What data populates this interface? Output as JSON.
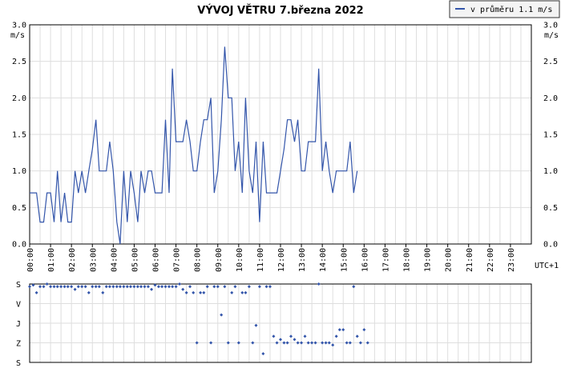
{
  "title": "VÝVOJ VĚTRU  7.března 2022",
  "legend_label": "v průměru 1.1 m/s",
  "timezone_label": "UTC+1",
  "colors": {
    "line": "#3355aa",
    "dot": "#3355aa",
    "grid": "#dedede",
    "legend_border": "#333333"
  },
  "chart_data": [
    {
      "type": "line",
      "ylabel": "m/s",
      "ylim": [
        0,
        3.0
      ],
      "yticks": [
        "0.0",
        "0.5",
        "1.0",
        "1.5",
        "2.0",
        "2.5",
        "3.0"
      ],
      "xticks": [
        "00:00",
        "01:00",
        "02:00",
        "03:00",
        "04:00",
        "05:00",
        "06:00",
        "07:00",
        "08:00",
        "09:00",
        "10:00",
        "11:00",
        "12:00",
        "13:00",
        "14:00",
        "15:00",
        "16:00",
        "17:00",
        "18:00",
        "19:00",
        "20:00",
        "21:00",
        "22:00",
        "23:00"
      ],
      "xlim": [
        0,
        24
      ],
      "grid": true,
      "legend": "top-right",
      "series": [
        {
          "name": "v průměru 1.1 m/s",
          "values": [
            [
              0.0,
              0.7
            ],
            [
              0.17,
              0.7
            ],
            [
              0.33,
              0.7
            ],
            [
              0.5,
              0.3
            ],
            [
              0.67,
              0.3
            ],
            [
              0.83,
              0.7
            ],
            [
              1.0,
              0.7
            ],
            [
              1.17,
              0.3
            ],
            [
              1.33,
              1.0
            ],
            [
              1.5,
              0.3
            ],
            [
              1.67,
              0.7
            ],
            [
              1.83,
              0.3
            ],
            [
              2.0,
              0.3
            ],
            [
              2.17,
              1.0
            ],
            [
              2.33,
              0.7
            ],
            [
              2.5,
              1.0
            ],
            [
              2.67,
              0.7
            ],
            [
              2.83,
              1.0
            ],
            [
              3.0,
              1.3
            ],
            [
              3.17,
              1.7
            ],
            [
              3.33,
              1.0
            ],
            [
              3.5,
              1.0
            ],
            [
              3.67,
              1.0
            ],
            [
              3.83,
              1.4
            ],
            [
              4.0,
              1.0
            ],
            [
              4.17,
              0.3
            ],
            [
              4.33,
              0.0
            ],
            [
              4.5,
              1.0
            ],
            [
              4.67,
              0.3
            ],
            [
              4.83,
              1.0
            ],
            [
              5.0,
              0.7
            ],
            [
              5.17,
              0.3
            ],
            [
              5.33,
              1.0
            ],
            [
              5.5,
              0.7
            ],
            [
              5.67,
              1.0
            ],
            [
              5.83,
              1.0
            ],
            [
              6.0,
              0.7
            ],
            [
              6.17,
              0.7
            ],
            [
              6.33,
              0.7
            ],
            [
              6.5,
              1.7
            ],
            [
              6.67,
              0.7
            ],
            [
              6.83,
              2.4
            ],
            [
              7.0,
              1.4
            ],
            [
              7.17,
              1.4
            ],
            [
              7.33,
              1.4
            ],
            [
              7.5,
              1.7
            ],
            [
              7.67,
              1.4
            ],
            [
              7.83,
              1.0
            ],
            [
              8.0,
              1.0
            ],
            [
              8.17,
              1.4
            ],
            [
              8.33,
              1.7
            ],
            [
              8.5,
              1.7
            ],
            [
              8.67,
              2.0
            ],
            [
              8.83,
              0.7
            ],
            [
              9.0,
              1.0
            ],
            [
              9.17,
              1.7
            ],
            [
              9.33,
              2.7
            ],
            [
              9.5,
              2.0
            ],
            [
              9.67,
              2.0
            ],
            [
              9.83,
              1.0
            ],
            [
              10.0,
              1.4
            ],
            [
              10.17,
              0.7
            ],
            [
              10.33,
              2.0
            ],
            [
              10.5,
              1.0
            ],
            [
              10.67,
              0.7
            ],
            [
              10.83,
              1.4
            ],
            [
              11.0,
              0.3
            ],
            [
              11.17,
              1.4
            ],
            [
              11.33,
              0.7
            ],
            [
              11.5,
              0.7
            ],
            [
              11.67,
              0.7
            ],
            [
              11.83,
              0.7
            ],
            [
              12.0,
              1.0
            ],
            [
              12.17,
              1.3
            ],
            [
              12.33,
              1.7
            ],
            [
              12.5,
              1.7
            ],
            [
              12.67,
              1.4
            ],
            [
              12.83,
              1.7
            ],
            [
              13.0,
              1.0
            ],
            [
              13.17,
              1.0
            ],
            [
              13.33,
              1.4
            ],
            [
              13.5,
              1.4
            ],
            [
              13.67,
              1.4
            ],
            [
              13.83,
              2.4
            ],
            [
              14.0,
              1.0
            ],
            [
              14.17,
              1.4
            ],
            [
              14.33,
              1.0
            ],
            [
              14.5,
              0.7
            ],
            [
              14.67,
              1.0
            ],
            [
              14.83,
              1.0
            ],
            [
              15.0,
              1.0
            ],
            [
              15.17,
              1.0
            ],
            [
              15.33,
              1.4
            ],
            [
              15.5,
              0.7
            ],
            [
              15.67,
              1.0
            ]
          ]
        }
      ]
    },
    {
      "type": "scatter",
      "ylabels": [
        "S",
        "V",
        "J",
        "Z",
        "S"
      ],
      "ylim": [
        0,
        360
      ],
      "series": [
        {
          "values": [
            [
              0.0,
              12
            ],
            [
              0.17,
              5
            ],
            [
              0.33,
              40
            ],
            [
              0.5,
              12
            ],
            [
              0.67,
              12
            ],
            [
              0.83,
              0
            ],
            [
              1.0,
              12
            ],
            [
              1.17,
              12
            ],
            [
              1.33,
              12
            ],
            [
              1.5,
              12
            ],
            [
              1.67,
              12
            ],
            [
              1.83,
              12
            ],
            [
              2.0,
              12
            ],
            [
              2.17,
              25
            ],
            [
              2.33,
              12
            ],
            [
              2.5,
              12
            ],
            [
              2.67,
              12
            ],
            [
              2.83,
              40
            ],
            [
              3.0,
              12
            ],
            [
              3.17,
              12
            ],
            [
              3.33,
              12
            ],
            [
              3.5,
              40
            ],
            [
              3.67,
              12
            ],
            [
              3.83,
              12
            ],
            [
              4.0,
              12
            ],
            [
              4.17,
              12
            ],
            [
              4.33,
              12
            ],
            [
              4.5,
              12
            ],
            [
              4.67,
              12
            ],
            [
              4.83,
              12
            ],
            [
              5.0,
              12
            ],
            [
              5.17,
              12
            ],
            [
              5.33,
              12
            ],
            [
              5.5,
              12
            ],
            [
              5.67,
              12
            ],
            [
              5.83,
              25
            ],
            [
              6.0,
              5
            ],
            [
              6.17,
              12
            ],
            [
              6.33,
              12
            ],
            [
              6.5,
              12
            ],
            [
              6.67,
              12
            ],
            [
              6.83,
              12
            ],
            [
              7.0,
              12
            ],
            [
              7.17,
              0
            ],
            [
              7.33,
              25
            ],
            [
              7.5,
              40
            ],
            [
              7.67,
              12
            ],
            [
              7.83,
              40
            ],
            [
              8.0,
              270
            ],
            [
              8.17,
              40
            ],
            [
              8.33,
              40
            ],
            [
              8.5,
              12
            ],
            [
              8.67,
              270
            ],
            [
              8.83,
              12
            ],
            [
              9.0,
              12
            ],
            [
              9.17,
              142
            ],
            [
              9.33,
              12
            ],
            [
              9.5,
              270
            ],
            [
              9.67,
              40
            ],
            [
              9.83,
              12
            ],
            [
              10.0,
              270
            ],
            [
              10.17,
              40
            ],
            [
              10.33,
              40
            ],
            [
              10.5,
              12
            ],
            [
              10.67,
              270
            ],
            [
              10.83,
              190
            ],
            [
              11.0,
              12
            ],
            [
              11.17,
              320
            ],
            [
              11.33,
              12
            ],
            [
              11.5,
              12
            ],
            [
              11.67,
              240
            ],
            [
              11.83,
              270
            ],
            [
              12.0,
              255
            ],
            [
              12.17,
              270
            ],
            [
              12.33,
              270
            ],
            [
              12.5,
              240
            ],
            [
              12.67,
              255
            ],
            [
              12.83,
              270
            ],
            [
              13.0,
              270
            ],
            [
              13.17,
              240
            ],
            [
              13.33,
              270
            ],
            [
              13.5,
              270
            ],
            [
              13.67,
              270
            ],
            [
              13.83,
              0
            ],
            [
              14.0,
              270
            ],
            [
              14.17,
              270
            ],
            [
              14.33,
              270
            ],
            [
              14.5,
              280
            ],
            [
              14.67,
              240
            ],
            [
              14.83,
              210
            ],
            [
              15.0,
              210
            ],
            [
              15.17,
              270
            ],
            [
              15.33,
              270
            ],
            [
              15.5,
              12
            ],
            [
              15.67,
              240
            ],
            [
              15.83,
              270
            ],
            [
              16.0,
              210
            ],
            [
              16.17,
              270
            ]
          ]
        }
      ]
    }
  ]
}
